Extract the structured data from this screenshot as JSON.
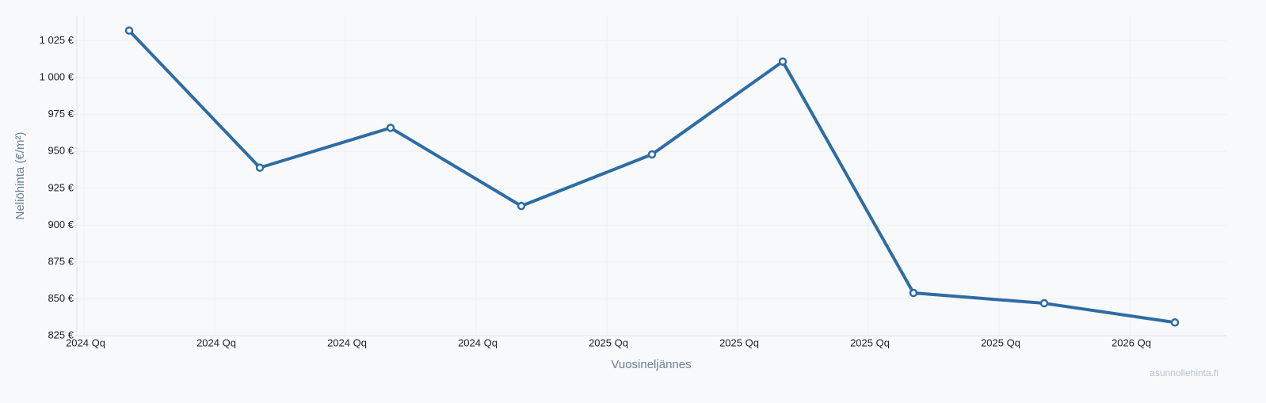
{
  "chart_data": {
    "type": "line",
    "y_label": "Neliöhinta (€/m²)",
    "x_label": "Vuosineljännes",
    "watermark": "asunnollehinta.fi",
    "categories": [
      "2024 Qq",
      "2024 Qq",
      "2024 Qq",
      "2024 Qq",
      "2025 Qq",
      "2025 Qq",
      "2025 Qq",
      "2025 Qq",
      "2026 Qq"
    ],
    "series": [
      {
        "name": "Neliöhinta",
        "color": "#2e6ca4",
        "values": [
          1032,
          939,
          966,
          913,
          948,
          1011,
          854,
          847,
          834
        ]
      }
    ],
    "ylim": [
      825,
      1042
    ],
    "yticks": [
      {
        "value": 825,
        "label": "825 €"
      },
      {
        "value": 850,
        "label": "850 €"
      },
      {
        "value": 875,
        "label": "875 €"
      },
      {
        "value": 900,
        "label": "900 €"
      },
      {
        "value": 925,
        "label": "925 €"
      },
      {
        "value": 950,
        "label": "950 €"
      },
      {
        "value": 975,
        "label": "975 €"
      },
      {
        "value": 1000,
        "label": "1 000 €"
      },
      {
        "value": 1025,
        "label": "1 025 €"
      }
    ],
    "grid": true
  }
}
